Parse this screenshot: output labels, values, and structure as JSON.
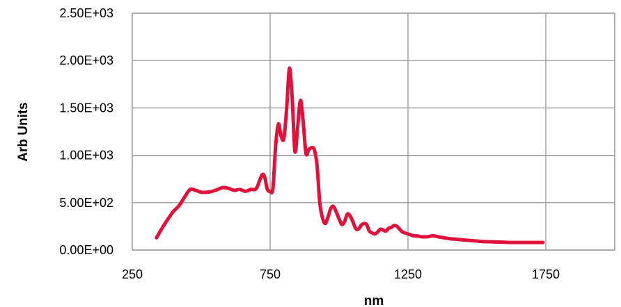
{
  "chart_data": {
    "type": "line",
    "title": "",
    "xlabel": "nm",
    "ylabel": "Arb Units",
    "xlim": [
      250,
      2000
    ],
    "ylim": [
      0,
      2500
    ],
    "x_ticks": [
      250,
      750,
      1250,
      1750
    ],
    "x_tick_labels": [
      "250",
      "750",
      "1250",
      "1750"
    ],
    "y_ticks": [
      0,
      500,
      1000,
      1500,
      2000,
      2500
    ],
    "y_tick_labels": [
      "0.00E+00",
      "5.00E+02",
      "1.00E+03",
      "1.50E+03",
      "2.00E+03",
      "2.50E+03"
    ],
    "grid": true,
    "legend": "none",
    "series_color": "#e0123c",
    "series": [
      {
        "x": [
          338,
          360,
          380,
          400,
          420,
          440,
          460,
          480,
          500,
          520,
          540,
          560,
          580,
          600,
          620,
          640,
          660,
          680,
          700,
          720,
          730,
          740,
          750,
          760,
          770,
          780,
          790,
          800,
          810,
          820,
          830,
          840,
          850,
          860,
          870,
          880,
          890,
          900,
          910,
          920,
          930,
          940,
          950,
          960,
          970,
          980,
          990,
          1000,
          1010,
          1020,
          1030,
          1040,
          1050,
          1060,
          1070,
          1080,
          1090,
          1100,
          1110,
          1120,
          1130,
          1140,
          1150,
          1160,
          1170,
          1180,
          1190,
          1200,
          1210,
          1220,
          1230,
          1240,
          1250,
          1260,
          1270,
          1280,
          1290,
          1300,
          1320,
          1340,
          1360,
          1380,
          1400,
          1420,
          1440,
          1460,
          1480,
          1500,
          1520,
          1540,
          1560,
          1580,
          1600,
          1620,
          1640,
          1660,
          1680,
          1700,
          1720,
          1740
        ],
        "y": [
          130,
          240,
          330,
          410,
          470,
          560,
          640,
          630,
          610,
          610,
          620,
          640,
          660,
          650,
          630,
          640,
          620,
          640,
          650,
          790,
          770,
          640,
          620,
          650,
          1100,
          1330,
          1200,
          1180,
          1500,
          1920,
          1600,
          1040,
          1300,
          1580,
          1350,
          1020,
          1060,
          1080,
          1060,
          900,
          500,
          340,
          280,
          350,
          440,
          460,
          400,
          330,
          270,
          300,
          380,
          360,
          300,
          230,
          220,
          260,
          280,
          270,
          200,
          180,
          170,
          190,
          220,
          210,
          200,
          230,
          240,
          260,
          250,
          220,
          190,
          180,
          170,
          160,
          150,
          150,
          145,
          140,
          140,
          150,
          140,
          130,
          120,
          115,
          110,
          105,
          100,
          95,
          90,
          88,
          86,
          84,
          82,
          80,
          80,
          80,
          80,
          80,
          80,
          80
        ]
      }
    ]
  }
}
